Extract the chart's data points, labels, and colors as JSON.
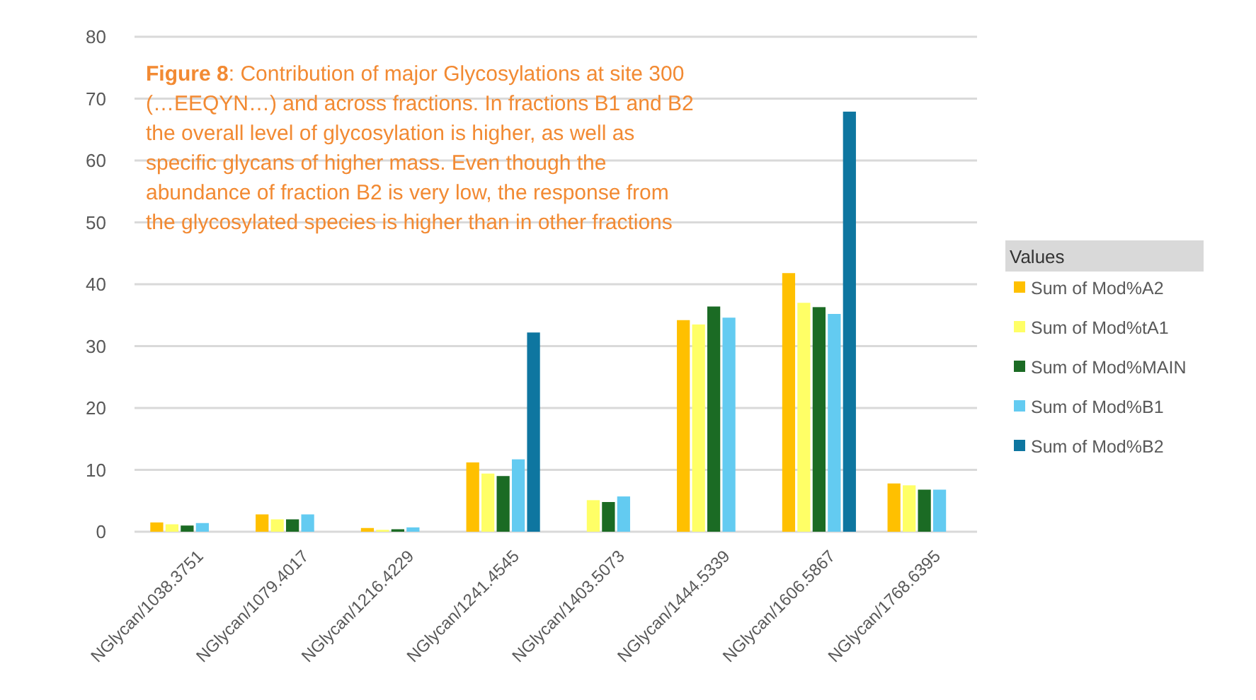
{
  "chart_data": {
    "type": "bar",
    "title": "Figure 8: Contribution of major Glycosylations at site 300\n(…EEQYN…) and across fractions. In fractions B1 and B2\nthe overall level of glycosylation is higher, as well as\nspecific glycans of higher mass. Even though the\nabundance of fraction B2 is very low, the response from\nthe glycosylated species is higher than in other fractions",
    "legend_title": "Values",
    "categories": [
      "NGlycan/1038.3751",
      "NGlycan/1079.4017",
      "NGlycan/1216.4229",
      "NGlycan/1241.4545",
      "NGlycan/1403.5073",
      "NGlycan/1444.5339",
      "NGlycan/1606.5867",
      "NGlycan/1768.6395"
    ],
    "series": [
      {
        "name": "Sum of Mod%A2",
        "color": "#ffc000",
        "values": [
          1.5,
          2.8,
          0.6,
          11.2,
          null,
          34.2,
          41.8,
          7.8
        ]
      },
      {
        "name": "Sum of Mod%tA1",
        "color": "#ffff66",
        "values": [
          1.2,
          2.0,
          0.3,
          9.4,
          5.1,
          33.5,
          37.0,
          7.5
        ]
      },
      {
        "name": "Sum of Mod%MAIN",
        "color": "#1b6b24",
        "values": [
          1.0,
          2.0,
          0.4,
          9.0,
          4.8,
          36.4,
          36.3,
          6.8
        ]
      },
      {
        "name": "Sum of Mod%B1",
        "color": "#63cbf1",
        "values": [
          1.4,
          2.8,
          0.7,
          11.7,
          5.7,
          34.6,
          35.2,
          6.8
        ]
      },
      {
        "name": "Sum of Mod%B2",
        "color": "#0e76a0",
        "values": [
          null,
          null,
          null,
          32.2,
          null,
          null,
          67.9,
          null
        ]
      }
    ],
    "ylim": [
      0,
      80
    ],
    "yticks": [
      0,
      10,
      20,
      30,
      40,
      50,
      60,
      70,
      80
    ],
    "grid": "y",
    "legend": "right"
  }
}
